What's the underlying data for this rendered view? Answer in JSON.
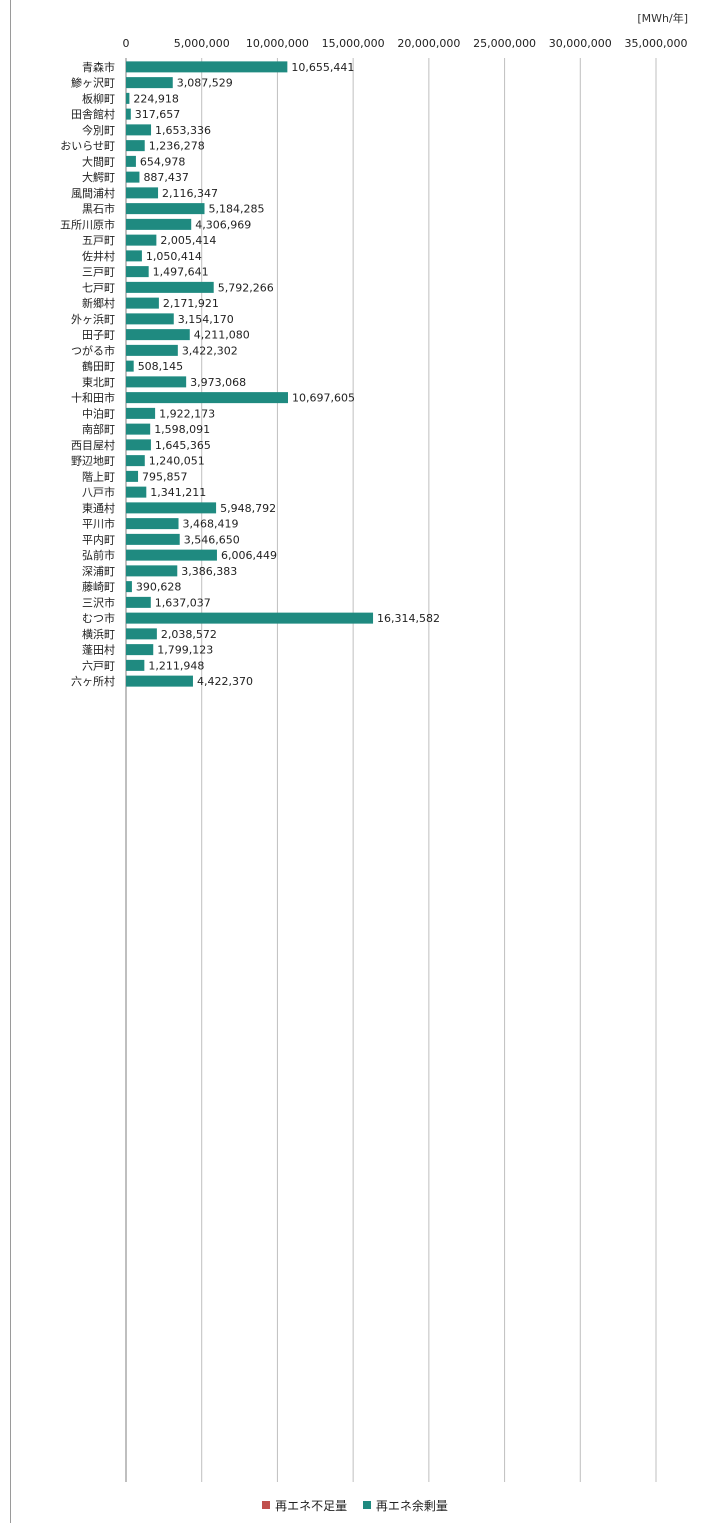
{
  "unit_label": "[MWh/年]",
  "legend": [
    {
      "name": "再エネ不足量",
      "color": "#c0504d"
    },
    {
      "name": "再エネ余剰量",
      "color": "#1f8a80"
    }
  ],
  "chart_data": {
    "type": "bar",
    "orientation": "horizontal",
    "xlim": [
      0,
      35000000
    ],
    "x_ticks": [
      "0",
      "5,000,000",
      "10,000,000",
      "15,000,000",
      "20,000,000",
      "25,000,000",
      "30,000,000",
      "35,000,000"
    ],
    "grid": true,
    "legend_position": "bottom",
    "categories": [
      "青森市",
      "鯵ヶ沢町",
      "板柳町",
      "田舎館村",
      "今別町",
      "おいらせ町",
      "大間町",
      "大鰐町",
      "風間浦村",
      "黒石市",
      "五所川原市",
      "五戸町",
      "佐井村",
      "三戸町",
      "七戸町",
      "新郷村",
      "外ヶ浜町",
      "田子町",
      "つがる市",
      "鶴田町",
      "東北町",
      "十和田市",
      "中泊町",
      "南部町",
      "西目屋村",
      "野辺地町",
      "階上町",
      "八戸市",
      "東通村",
      "平川市",
      "平内町",
      "弘前市",
      "深浦町",
      "藤崎町",
      "三沢市",
      "むつ市",
      "横浜町",
      "蓬田村",
      "六戸町",
      "六ヶ所村"
    ],
    "series": [
      {
        "name": "再エネ余剰量",
        "color": "#1f8a80",
        "values": [
          10655441,
          3087529,
          224918,
          317657,
          1653336,
          1236278,
          654978,
          887437,
          2116347,
          5184285,
          4306969,
          2005414,
          1050414,
          1497641,
          5792266,
          2171921,
          3154170,
          4211080,
          3422302,
          508145,
          3973068,
          10697605,
          1922173,
          1598091,
          1645365,
          1240051,
          795857,
          1341211,
          5948792,
          3468419,
          3546650,
          6006449,
          3386383,
          390628,
          1637037,
          16314582,
          2038572,
          1799123,
          1211948,
          4422370
        ],
        "labels": [
          "10,655,441",
          "3,087,529",
          "224,918",
          "317,657",
          "1,653,336",
          "1,236,278",
          "654,978",
          "887,437",
          "2,116,347",
          "5,184,285",
          "4,306,969",
          "2,005,414",
          "1,050,414",
          "1,497,641",
          "5,792,266",
          "2,171,921",
          "3,154,170",
          "4,211,080",
          "3,422,302",
          "508,145",
          "3,973,068",
          "10,697,605",
          "1,922,173",
          "1,598,091",
          "1,645,365",
          "1,240,051",
          "795,857",
          "1,341,211",
          "5,948,792",
          "3,468,419",
          "3,546,650",
          "6,006,449",
          "3,386,383",
          "390,628",
          "1,637,037",
          "16,314,582",
          "2,038,572",
          "1,799,123",
          "1,211,948",
          "4,422,370"
        ]
      }
    ]
  }
}
